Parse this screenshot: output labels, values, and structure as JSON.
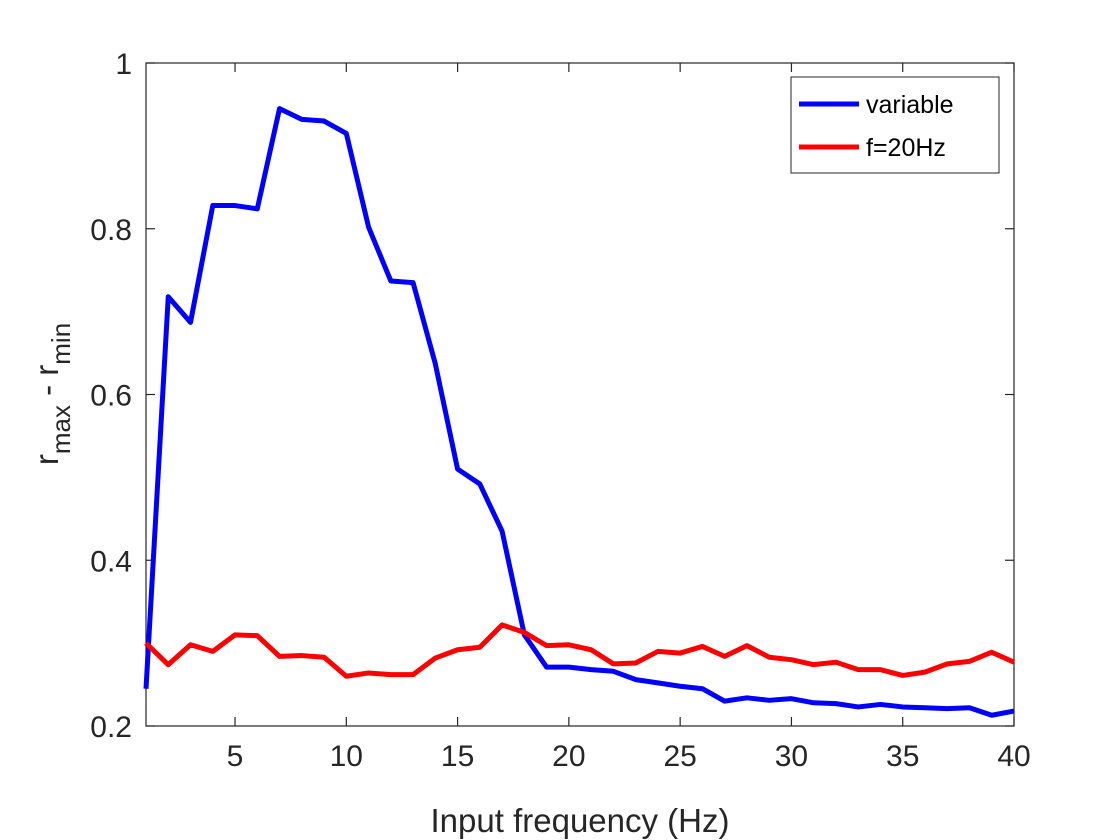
{
  "chart_data": {
    "type": "line",
    "title": "",
    "xlabel": "Input frequency (Hz)",
    "ylabel": {
      "base": "r",
      "sub1": "max",
      "mid": " - r",
      "sub2": "min"
    },
    "xlim": [
      1,
      40
    ],
    "ylim": [
      0.2,
      1
    ],
    "xticks": [
      5,
      10,
      15,
      20,
      25,
      30,
      35,
      40
    ],
    "yticks": [
      0.2,
      0.4,
      0.6,
      0.8,
      1
    ],
    "ytick_labels": [
      "0.2",
      "0.4",
      "0.6",
      "0.8",
      "1"
    ],
    "grid": false,
    "legend_position": "top-right",
    "x": [
      1,
      2,
      3,
      4,
      5,
      6,
      7,
      8,
      9,
      10,
      11,
      12,
      13,
      14,
      15,
      16,
      17,
      18,
      19,
      20,
      21,
      22,
      23,
      24,
      25,
      26,
      27,
      28,
      29,
      30,
      31,
      32,
      33,
      34,
      35,
      36,
      37,
      38,
      39,
      40
    ],
    "series": [
      {
        "name": "variable",
        "color": "#0000ff",
        "values": [
          0.245,
          0.718,
          0.687,
          0.828,
          0.828,
          0.824,
          0.945,
          0.932,
          0.93,
          0.915,
          0.802,
          0.737,
          0.735,
          0.637,
          0.51,
          0.492,
          0.435,
          0.31,
          0.271,
          0.271,
          0.268,
          0.266,
          0.256,
          0.252,
          0.248,
          0.245,
          0.23,
          0.234,
          0.231,
          0.233,
          0.228,
          0.227,
          0.223,
          0.226,
          0.223,
          0.222,
          0.221,
          0.222,
          0.213,
          0.218
        ]
      },
      {
        "name": "f=20Hz",
        "color": "#ff0000",
        "values": [
          0.3,
          0.274,
          0.298,
          0.29,
          0.31,
          0.309,
          0.284,
          0.285,
          0.283,
          0.26,
          0.264,
          0.262,
          0.262,
          0.282,
          0.292,
          0.295,
          0.322,
          0.313,
          0.297,
          0.298,
          0.292,
          0.275,
          0.276,
          0.29,
          0.288,
          0.296,
          0.284,
          0.297,
          0.283,
          0.28,
          0.274,
          0.277,
          0.268,
          0.268,
          0.261,
          0.265,
          0.275,
          0.278,
          0.289,
          0.277
        ]
      }
    ]
  }
}
